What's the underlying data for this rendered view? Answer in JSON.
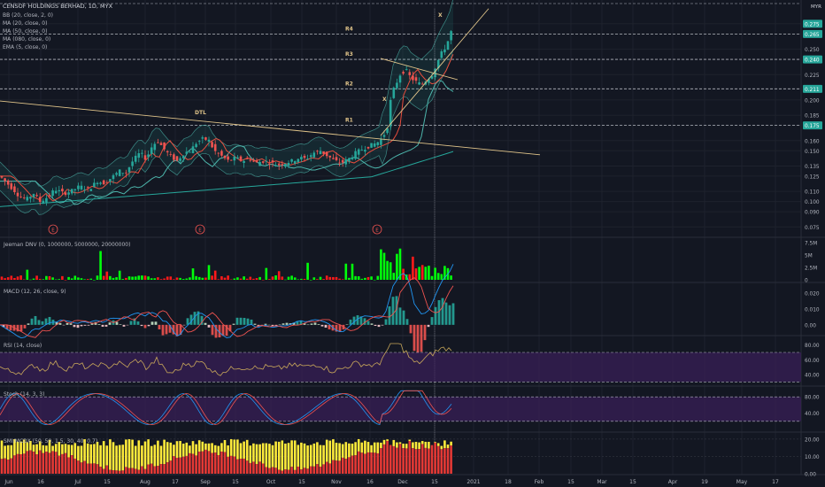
{
  "header": {
    "title": "CENSOF HOLDINGS BERHAD, 1D, MYX",
    "indicators": [
      "BB (20, close, 2, 0)",
      "MA (20, close, 0)",
      "MA (50, close, 0)",
      "MA (080, close, 0)",
      "EMA (5, close, 0)"
    ],
    "currency": "MYR"
  },
  "colors": {
    "background": "#131722",
    "grid": "#2a2e39",
    "up": "#26a69a",
    "down": "#ef5350",
    "vol_up": "#00ff0a",
    "vol_down": "#ff1a1a",
    "trend": "#e0c48a",
    "ma_red": "#e84d3d",
    "ma_teal": "#26a69a",
    "bb": "#4db6ac",
    "panel_fill": "#3a1f5a",
    "macd_line": "#2196f3",
    "signal_line": "#ef5350",
    "rsi_line": "#c9a85a",
    "yellow_bar": "#ffeb3b",
    "red_bar": "#e53935"
  },
  "chart_data": {
    "type": "candlestick",
    "x_ticks": [
      "Jun",
      "16",
      "Jul",
      "15",
      "Aug",
      "17",
      "Sep",
      "15",
      "Oct",
      "15",
      "Nov",
      "16",
      "Dec",
      "15",
      "2021",
      "18",
      "Feb",
      "15",
      "Mar",
      "15",
      "Apr",
      "19",
      "May",
      "17"
    ],
    "price_axis": {
      "ylim": [
        0.07,
        0.295
      ],
      "ticks": [
        "0.275",
        "0.265",
        "0.250",
        "0.240",
        "0.225",
        "0.211",
        "0.200",
        "0.185",
        "0.175",
        "0.160",
        "0.150",
        "0.135",
        "0.125",
        "0.110",
        "0.100",
        "0.090",
        "0.075"
      ],
      "tick_values": [
        0.275,
        0.265,
        0.25,
        0.24,
        0.225,
        0.211,
        0.2,
        0.185,
        0.175,
        0.16,
        0.15,
        0.135,
        0.125,
        0.11,
        0.1,
        0.09,
        0.075
      ],
      "highlighted": [
        "0.275",
        "0.265",
        "0.240",
        "0.211",
        "0.175"
      ]
    },
    "levels": [
      {
        "label": "R4",
        "value": 0.265
      },
      {
        "label": "R3",
        "value": 0.24
      },
      {
        "label": "R2",
        "value": 0.211
      },
      {
        "label": "R1",
        "value": 0.175
      }
    ],
    "annotations": [
      "DTL",
      "X",
      "X"
    ],
    "earnings_markers": [
      "E",
      "E",
      "E"
    ],
    "price_points": [
      [
        0,
        0.125
      ],
      [
        8,
        0.118
      ],
      [
        15,
        0.112
      ],
      [
        22,
        0.105
      ],
      [
        30,
        0.102
      ],
      [
        38,
        0.108
      ],
      [
        45,
        0.1
      ],
      [
        55,
        0.105
      ],
      [
        62,
        0.112
      ],
      [
        72,
        0.108
      ],
      [
        80,
        0.11
      ],
      [
        90,
        0.115
      ],
      [
        100,
        0.112
      ],
      [
        110,
        0.12
      ],
      [
        118,
        0.118
      ],
      [
        128,
        0.125
      ],
      [
        135,
        0.13
      ],
      [
        142,
        0.128
      ],
      [
        150,
        0.14
      ],
      [
        158,
        0.148
      ],
      [
        165,
        0.142
      ],
      [
        172,
        0.155
      ],
      [
        178,
        0.16
      ],
      [
        185,
        0.152
      ],
      [
        192,
        0.145
      ],
      [
        200,
        0.14
      ],
      [
        208,
        0.148
      ],
      [
        215,
        0.15
      ],
      [
        222,
        0.158
      ],
      [
        230,
        0.162
      ],
      [
        236,
        0.16
      ],
      [
        242,
        0.15
      ],
      [
        250,
        0.145
      ],
      [
        258,
        0.14
      ],
      [
        266,
        0.143
      ],
      [
        274,
        0.14
      ],
      [
        282,
        0.142
      ],
      [
        290,
        0.138
      ],
      [
        298,
        0.14
      ],
      [
        306,
        0.138
      ],
      [
        314,
        0.136
      ],
      [
        322,
        0.138
      ],
      [
        330,
        0.14
      ],
      [
        338,
        0.143
      ],
      [
        346,
        0.142
      ],
      [
        354,
        0.148
      ],
      [
        362,
        0.15
      ],
      [
        370,
        0.145
      ],
      [
        378,
        0.14
      ],
      [
        386,
        0.138
      ],
      [
        394,
        0.142
      ],
      [
        402,
        0.148
      ],
      [
        410,
        0.152
      ],
      [
        418,
        0.155
      ],
      [
        426,
        0.158
      ],
      [
        432,
        0.162
      ],
      [
        438,
        0.175
      ],
      [
        442,
        0.205
      ],
      [
        447,
        0.215
      ],
      [
        452,
        0.225
      ],
      [
        458,
        0.23
      ],
      [
        464,
        0.222
      ],
      [
        470,
        0.218
      ],
      [
        476,
        0.215
      ],
      [
        482,
        0.22
      ],
      [
        488,
        0.225
      ],
      [
        493,
        0.235
      ],
      [
        498,
        0.245
      ],
      [
        503,
        0.252
      ],
      [
        508,
        0.262
      ],
      [
        512,
        0.275
      ]
    ],
    "volume": {
      "label": "Jeeman DNV (0, 1000000, 5000000, 20000000)",
      "ticks": [
        "7.5M",
        "5M",
        "2.5M",
        "0"
      ],
      "tick_values": [
        7.5,
        5,
        2.5,
        0
      ],
      "ylim": [
        0,
        7.5
      ],
      "unit": "M"
    },
    "macd": {
      "label": "MACD (12, 26, close, 9)",
      "ticks": [
        "0.020",
        "0.010",
        "0.00"
      ],
      "tick_values": [
        0.02,
        0.01,
        0
      ],
      "ylim": [
        -0.004,
        0.024
      ]
    },
    "rsi": {
      "label": "RSI (14, close)",
      "ticks": [
        "80.00",
        "60.00",
        "40.00"
      ],
      "tick_values": [
        80,
        60,
        40
      ],
      "ylim": [
        28,
        88
      ]
    },
    "stoch": {
      "label": "Stoch (14, 3, 3)",
      "ticks": [
        "80.00",
        "40.00"
      ],
      "tick_values": [
        80,
        40
      ],
      "ylim": [
        0,
        100
      ]
    },
    "smi": {
      "label": "SMI/MCDX (50, 50, 1.5, 30, 40, 0.7)",
      "ticks": [
        "20.00",
        "10.00",
        "0.00"
      ],
      "tick_values": [
        20,
        10,
        0
      ],
      "ylim": [
        0,
        22
      ]
    }
  }
}
